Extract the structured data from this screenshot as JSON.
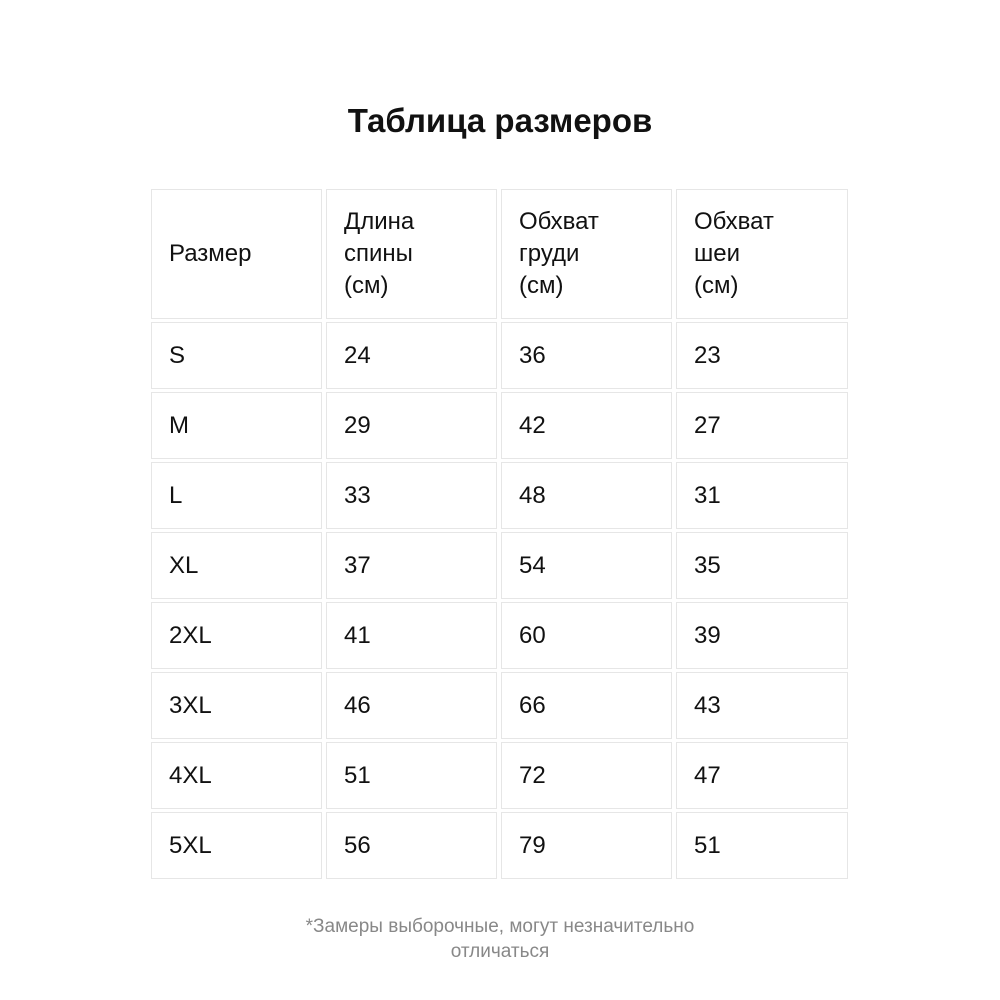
{
  "title": "Таблица размеров",
  "table": {
    "headers": [
      [
        "Размер"
      ],
      [
        "Длина",
        "спины",
        "(см)"
      ],
      [
        "Обхват",
        "груди",
        "(см)"
      ],
      [
        "Обхват",
        "шеи",
        "(см)"
      ]
    ],
    "rows": [
      [
        "S",
        "24",
        "36",
        "23"
      ],
      [
        "M",
        "29",
        "42",
        "27"
      ],
      [
        "L",
        "33",
        "48",
        "31"
      ],
      [
        "XL",
        "37",
        "54",
        "35"
      ],
      [
        "2XL",
        "41",
        "60",
        "39"
      ],
      [
        "3XL",
        "46",
        "66",
        "43"
      ],
      [
        "4XL",
        "51",
        "72",
        "47"
      ],
      [
        "5XL",
        "56",
        "79",
        "51"
      ]
    ]
  },
  "note": [
    "*Замеры выборочные, могут незначительно",
    "отличаться"
  ],
  "colors": {
    "border": "#e6e6e6",
    "note": "#888888"
  }
}
